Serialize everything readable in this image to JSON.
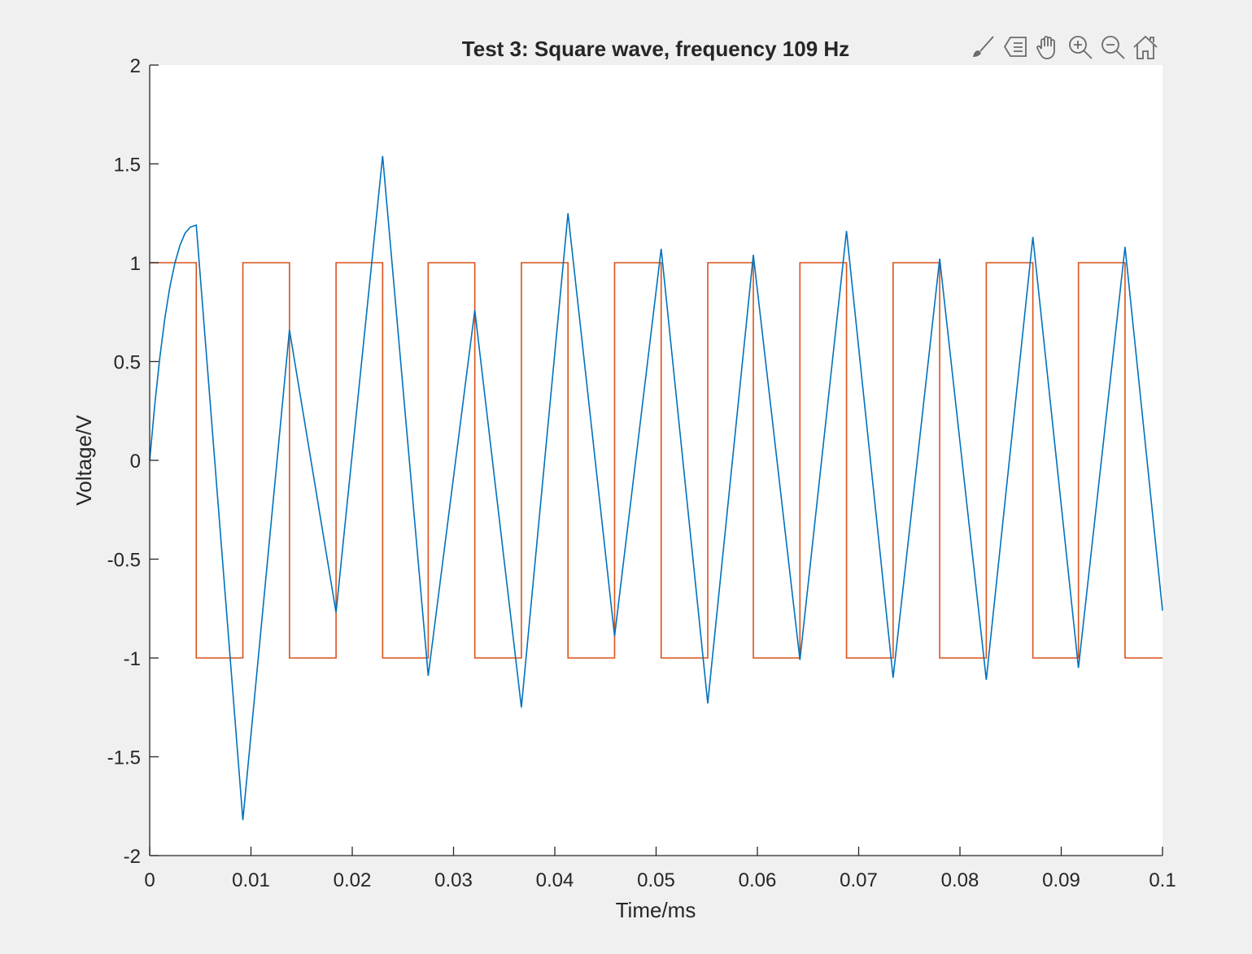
{
  "chart_data": {
    "type": "line",
    "title": "Test 3: Square wave, frequency 109 Hz",
    "xlabel": "Time/ms",
    "ylabel": "Voltage/V",
    "xlim": [
      0,
      0.1
    ],
    "ylim": [
      -2,
      2
    ],
    "xticks": [
      0,
      0.01,
      0.02,
      0.03,
      0.04,
      0.05,
      0.06,
      0.07,
      0.08,
      0.09,
      0.1
    ],
    "xtick_labels": [
      "0",
      "0.01",
      "0.02",
      "0.03",
      "0.04",
      "0.05",
      "0.06",
      "0.07",
      "0.08",
      "0.09",
      "0.1"
    ],
    "yticks": [
      -2,
      -1.5,
      -1,
      -0.5,
      0,
      0.5,
      1,
      1.5,
      2
    ],
    "ytick_labels": [
      "-2",
      "-1.5",
      "-1",
      "-0.5",
      "0",
      "0.5",
      "1",
      "1.5",
      "2"
    ],
    "grid": false,
    "series": [
      {
        "color": "#0072bd",
        "x": [
          0,
          0.0005,
          0.001,
          0.0015,
          0.002,
          0.0025,
          0.003,
          0.0035,
          0.004,
          0.0046,
          0.0092,
          0.0138,
          0.0184,
          0.023,
          0.0275,
          0.0321,
          0.0367,
          0.0413,
          0.0459,
          0.0505,
          0.0551,
          0.0596,
          0.0642,
          0.0688,
          0.0734,
          0.078,
          0.0826,
          0.0872,
          0.0917,
          0.0963,
          0.1
        ],
        "y": [
          0,
          0.28,
          0.52,
          0.72,
          0.88,
          1.0,
          1.09,
          1.15,
          1.18,
          1.19,
          -1.82,
          0.66,
          -0.77,
          1.54,
          -1.09,
          0.76,
          -1.25,
          1.25,
          -0.89,
          1.07,
          -1.23,
          1.04,
          -1.01,
          1.16,
          -1.1,
          1.02,
          -1.11,
          1.13,
          -1.05,
          1.08,
          -0.76
        ]
      },
      {
        "color": "#d95319",
        "x": [
          0,
          0.0046,
          0.0046,
          0.0092,
          0.0092,
          0.0138,
          0.0138,
          0.0184,
          0.0184,
          0.023,
          0.023,
          0.0275,
          0.0275,
          0.0321,
          0.0321,
          0.0367,
          0.0367,
          0.0413,
          0.0413,
          0.0459,
          0.0459,
          0.0505,
          0.0505,
          0.0551,
          0.0551,
          0.0596,
          0.0596,
          0.0642,
          0.0642,
          0.0688,
          0.0688,
          0.0734,
          0.0734,
          0.078,
          0.078,
          0.0826,
          0.0826,
          0.0872,
          0.0872,
          0.0917,
          0.0917,
          0.0963,
          0.0963,
          0.1
        ],
        "y": [
          1,
          1,
          -1,
          -1,
          1,
          1,
          -1,
          -1,
          1,
          1,
          -1,
          -1,
          1,
          1,
          -1,
          -1,
          1,
          1,
          -1,
          -1,
          1,
          1,
          -1,
          -1,
          1,
          1,
          -1,
          -1,
          1,
          1,
          -1,
          -1,
          1,
          1,
          -1,
          -1,
          1,
          1,
          -1,
          -1,
          1,
          1,
          -1,
          -1
        ]
      }
    ]
  },
  "toolbar": {
    "items": [
      "brush-icon",
      "data-tips-icon",
      "pan-icon",
      "zoom-in-icon",
      "zoom-out-icon",
      "home-icon"
    ]
  }
}
